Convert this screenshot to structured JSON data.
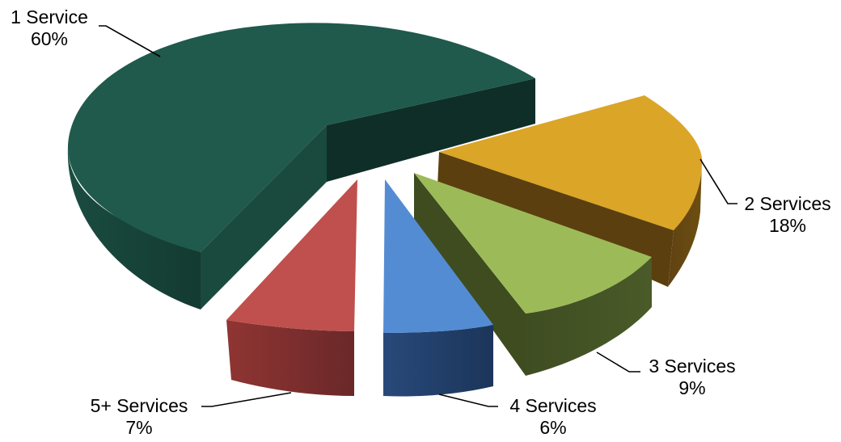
{
  "chart_data": {
    "type": "pie",
    "style": "3d-exploded",
    "slices": [
      {
        "label": "1 Service",
        "percent_label": "60%",
        "value": 60,
        "color": "#1f5a4c"
      },
      {
        "label": "2 Services",
        "percent_label": "18%",
        "value": 18,
        "color": "#dba527"
      },
      {
        "label": "3 Services",
        "percent_label": "9%",
        "value": 9,
        "color": "#9cbb58"
      },
      {
        "label": "4 Services",
        "percent_label": "6%",
        "value": 6,
        "color": "#548cd4"
      },
      {
        "label": "5+ Services",
        "percent_label": "7%",
        "value": 7,
        "color": "#c0504d"
      }
    ],
    "legend": "none"
  }
}
